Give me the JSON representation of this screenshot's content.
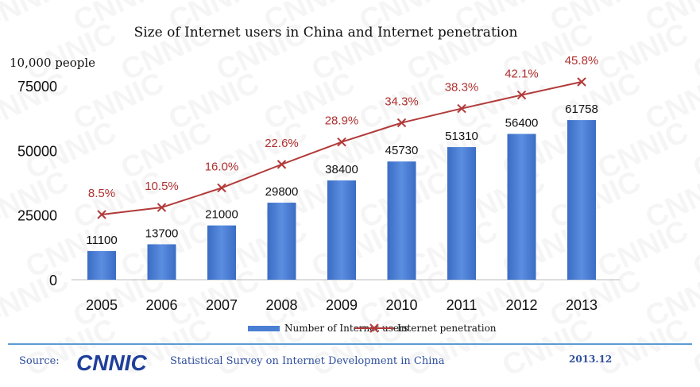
{
  "chart_data": {
    "type": "bar",
    "title": "Size of Internet users in China and Internet penetration",
    "ylabel": "10,000 people",
    "ylim": [
      0,
      80000
    ],
    "yticks": [
      "0",
      "25000",
      "50000",
      "75000"
    ],
    "ytick_values": [
      0,
      25000,
      50000,
      75000
    ],
    "categories": [
      "2005",
      "2006",
      "2007",
      "2008",
      "2009",
      "2010",
      "2011",
      "2012",
      "2013"
    ],
    "series": [
      {
        "name": "Number of Internet users",
        "type": "bar",
        "values": [
          11100,
          13700,
          21000,
          29800,
          38400,
          45730,
          51310,
          56400,
          61758
        ],
        "labels": [
          "11100",
          "13700",
          "21000",
          "29800",
          "38400",
          "45730",
          "51310",
          "56400",
          "61758"
        ]
      },
      {
        "name": "Internet penetration",
        "type": "line",
        "unit": "%",
        "values": [
          8.5,
          10.5,
          16.0,
          22.6,
          28.9,
          34.3,
          38.3,
          42.1,
          45.8
        ],
        "labels": [
          "8.5%",
          "10.5%",
          "16.0%",
          "22.6%",
          "28.9%",
          "34.3%",
          "38.3%",
          "42.1%",
          "45.8%"
        ]
      }
    ],
    "legend_position": "bottom",
    "grid": false
  },
  "colors": {
    "bar": "#4a7fd4",
    "line": "#b23a3a",
    "footer_rule": "#5b9bd5",
    "footer_text": "#2f4f9e",
    "logo": "#1f3f99"
  },
  "footer": {
    "source_label": "Source:",
    "logo_text": "CNNIC",
    "survey_text": "Statistical Survey on Internet Development in China",
    "date": "2013.12"
  },
  "watermark": "CNNIC"
}
